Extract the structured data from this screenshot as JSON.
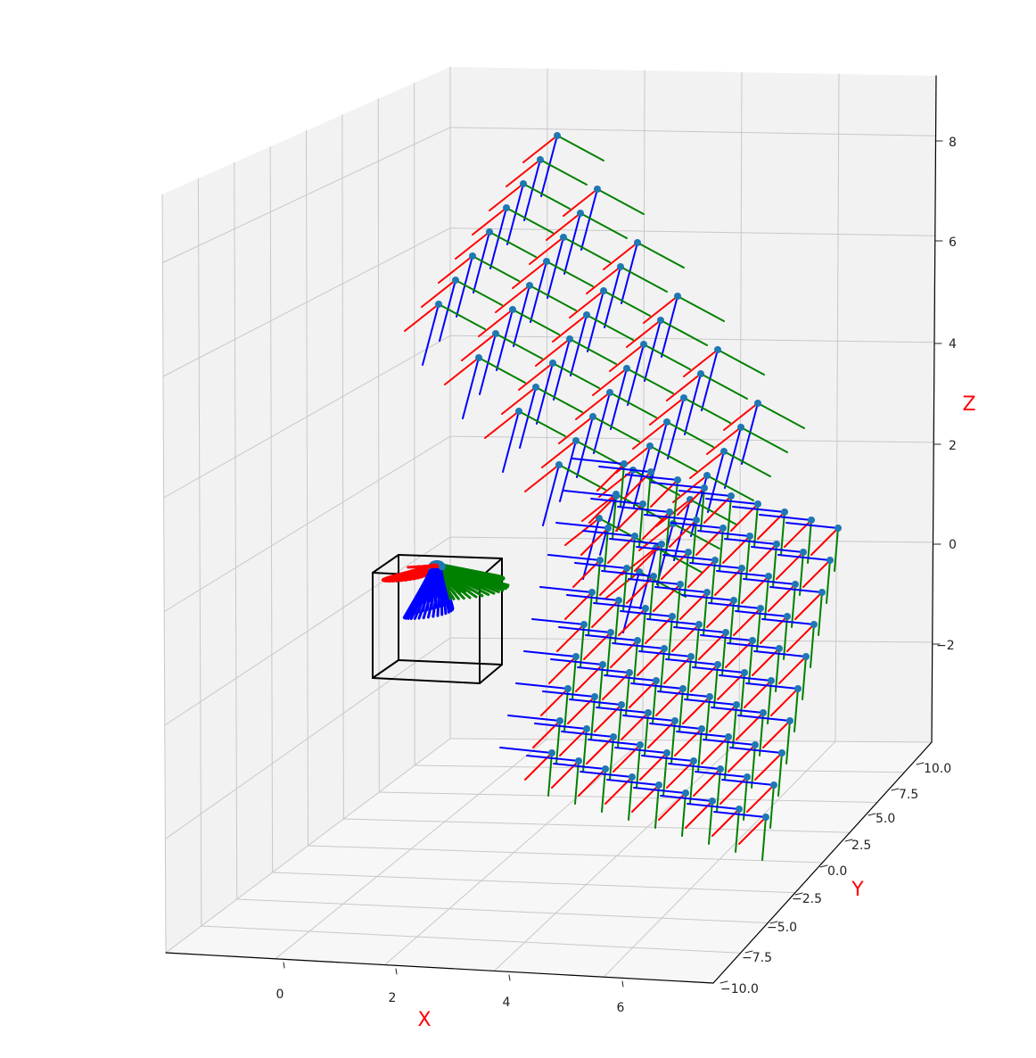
{
  "chart_data": {
    "type": "scatter",
    "subtype": "3d-pose-frames",
    "title": "",
    "axes": {
      "x": {
        "label": "X",
        "label_color": "#ff0000",
        "ticks": [
          "0",
          "2",
          "4",
          "6"
        ]
      },
      "y": {
        "label": "Y",
        "label_color": "#ff0000",
        "ticks": [
          "10.0",
          "7.5",
          "5.0",
          "2.5",
          "0.0",
          "−2.5",
          "−5.0",
          "−7.5",
          "−10.0"
        ]
      },
      "z": {
        "label": "Z",
        "label_color": "#ff0000",
        "ticks": [
          "8",
          "6",
          "4",
          "2",
          "0",
          "−2"
        ]
      }
    },
    "grid": true,
    "pane_color": "#f2f2f2",
    "frame_axis_colors": {
      "x_axis": "#ff0000",
      "y_axis": "#008000",
      "z_axis": "#0000ff"
    },
    "point_color": "#1f77b4",
    "reference_object": "black wireframe cube at the origin with a dense cluster of coordinate frames",
    "frame_groups": [
      {
        "name": "upper grid",
        "count": 48
      },
      {
        "name": "lower-right grid",
        "count": 90
      },
      {
        "name": "origin cluster",
        "count": 40
      }
    ]
  }
}
